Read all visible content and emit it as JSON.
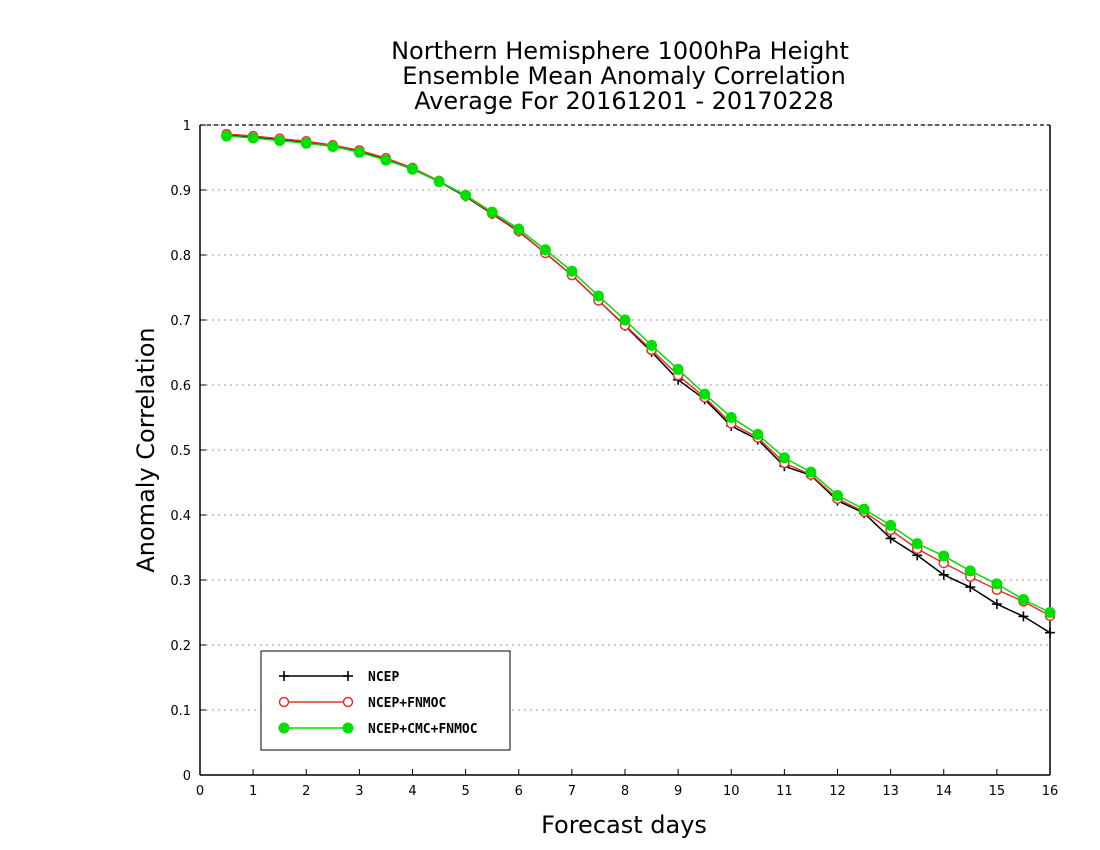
{
  "chart_data": {
    "type": "line",
    "title_lines": [
      "Northern Hemisphere 1000hPa Height",
      "Ensemble Mean Anomaly Correlation",
      "Average For 20161201 - 20170228"
    ],
    "xlabel": "Forecast days",
    "ylabel": "Anomaly Correlation",
    "xlim": [
      0,
      16
    ],
    "ylim": [
      0,
      1
    ],
    "xticks": [
      0,
      1,
      2,
      3,
      4,
      5,
      6,
      7,
      8,
      9,
      10,
      11,
      12,
      13,
      14,
      15,
      16
    ],
    "yticks": [
      0,
      0.1,
      0.2,
      0.3,
      0.4,
      0.5,
      0.6,
      0.7,
      0.8,
      0.9,
      1
    ],
    "grid": "horizontal dotted",
    "legend_position": "bottom-left",
    "x": [
      0.5,
      1,
      1.5,
      2,
      2.5,
      3,
      3.5,
      4,
      4.5,
      5,
      5.5,
      6,
      6.5,
      7,
      7.5,
      8,
      8.5,
      9,
      9.5,
      10,
      10.5,
      11,
      11.5,
      12,
      12.5,
      13,
      13.5,
      14,
      14.5,
      15,
      15.5,
      16
    ],
    "series": [
      {
        "name": "NCEP",
        "color": "#000000",
        "marker": "plus",
        "values": [
          0.984,
          0.981,
          0.977,
          0.973,
          0.967,
          0.959,
          0.947,
          0.932,
          0.913,
          0.89,
          0.863,
          0.836,
          0.803,
          0.769,
          0.73,
          0.691,
          0.651,
          0.608,
          0.578,
          0.537,
          0.516,
          0.475,
          0.461,
          0.422,
          0.403,
          0.364,
          0.338,
          0.308,
          0.289,
          0.263,
          0.244,
          0.219
        ]
      },
      {
        "name": "NCEP+FNMOC",
        "color": "#e83030",
        "marker": "open-circle",
        "values": [
          0.986,
          0.983,
          0.979,
          0.975,
          0.969,
          0.961,
          0.949,
          0.934,
          0.914,
          0.891,
          0.864,
          0.837,
          0.803,
          0.769,
          0.73,
          0.692,
          0.654,
          0.615,
          0.581,
          0.541,
          0.519,
          0.48,
          0.462,
          0.425,
          0.405,
          0.377,
          0.348,
          0.326,
          0.305,
          0.285,
          0.267,
          0.245
        ]
      },
      {
        "name": "NCEP+CMC+FNMOC",
        "color": "#00e000",
        "marker": "filled-circle",
        "values": [
          0.983,
          0.98,
          0.976,
          0.972,
          0.967,
          0.958,
          0.946,
          0.932,
          0.913,
          0.892,
          0.866,
          0.84,
          0.808,
          0.775,
          0.737,
          0.7,
          0.661,
          0.624,
          0.586,
          0.55,
          0.524,
          0.488,
          0.466,
          0.43,
          0.409,
          0.384,
          0.356,
          0.337,
          0.314,
          0.294,
          0.27,
          0.25
        ]
      }
    ]
  }
}
